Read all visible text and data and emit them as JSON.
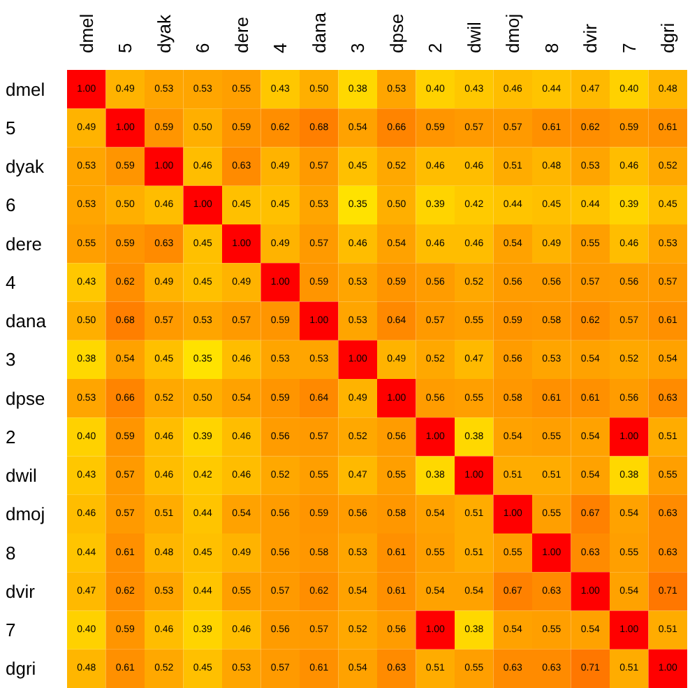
{
  "chart_data": {
    "type": "heatmap",
    "categories": [
      "dmel",
      "5",
      "dyak",
      "6",
      "dere",
      "4",
      "dana",
      "3",
      "dpse",
      "2",
      "dwil",
      "dmoj",
      "8",
      "dvir",
      "7",
      "dgri"
    ],
    "y_categories": [
      "dmel",
      "5",
      "dyak",
      "6",
      "dere",
      "4",
      "dana",
      "3",
      "dpse",
      "2",
      "dwil",
      "dmoj",
      "8",
      "dvir",
      "7",
      "dgri"
    ],
    "cells": [
      [
        1.0,
        0.49,
        0.53,
        0.53,
        0.55,
        0.43,
        0.5,
        0.38,
        0.53,
        0.4,
        0.43,
        0.46,
        0.44,
        0.47,
        0.4,
        0.48
      ],
      [
        0.49,
        1.0,
        0.59,
        0.5,
        0.59,
        0.62,
        0.68,
        0.54,
        0.66,
        0.59,
        0.57,
        0.57,
        0.61,
        0.62,
        0.59,
        0.61
      ],
      [
        0.53,
        0.59,
        1.0,
        0.46,
        0.63,
        0.49,
        0.57,
        0.45,
        0.52,
        0.46,
        0.46,
        0.51,
        0.48,
        0.53,
        0.46,
        0.52
      ],
      [
        0.53,
        0.5,
        0.46,
        1.0,
        0.45,
        0.45,
        0.53,
        0.35,
        0.5,
        0.39,
        0.42,
        0.44,
        0.45,
        0.44,
        0.39,
        0.45
      ],
      [
        0.55,
        0.59,
        0.63,
        0.45,
        1.0,
        0.49,
        0.57,
        0.46,
        0.54,
        0.46,
        0.46,
        0.54,
        0.49,
        0.55,
        0.46,
        0.53
      ],
      [
        0.43,
        0.62,
        0.49,
        0.45,
        0.49,
        1.0,
        0.59,
        0.53,
        0.59,
        0.56,
        0.52,
        0.56,
        0.56,
        0.57,
        0.56,
        0.57
      ],
      [
        0.5,
        0.68,
        0.57,
        0.53,
        0.57,
        0.59,
        1.0,
        0.53,
        0.64,
        0.57,
        0.55,
        0.59,
        0.58,
        0.62,
        0.57,
        0.61
      ],
      [
        0.38,
        0.54,
        0.45,
        0.35,
        0.46,
        0.53,
        0.53,
        1.0,
        0.49,
        0.52,
        0.47,
        0.56,
        0.53,
        0.54,
        0.52,
        0.54
      ],
      [
        0.53,
        0.66,
        0.52,
        0.5,
        0.54,
        0.59,
        0.64,
        0.49,
        1.0,
        0.56,
        0.55,
        0.58,
        0.61,
        0.61,
        0.56,
        0.63
      ],
      [
        0.4,
        0.59,
        0.46,
        0.39,
        0.46,
        0.56,
        0.57,
        0.52,
        0.56,
        1.0,
        0.38,
        0.54,
        0.55,
        0.54,
        1.0,
        0.51
      ],
      [
        0.43,
        0.57,
        0.46,
        0.42,
        0.46,
        0.52,
        0.55,
        0.47,
        0.55,
        0.38,
        1.0,
        0.51,
        0.51,
        0.54,
        0.38,
        0.55
      ],
      [
        0.46,
        0.57,
        0.51,
        0.44,
        0.54,
        0.56,
        0.59,
        0.56,
        0.58,
        0.54,
        0.51,
        1.0,
        0.55,
        0.67,
        0.54,
        0.63
      ],
      [
        0.44,
        0.61,
        0.48,
        0.45,
        0.49,
        0.56,
        0.58,
        0.53,
        0.61,
        0.55,
        0.51,
        0.55,
        1.0,
        0.63,
        0.55,
        0.63
      ],
      [
        0.47,
        0.62,
        0.53,
        0.44,
        0.55,
        0.57,
        0.62,
        0.54,
        0.61,
        0.54,
        0.54,
        0.67,
        0.63,
        1.0,
        0.54,
        0.71
      ],
      [
        0.4,
        0.59,
        0.46,
        0.39,
        0.46,
        0.56,
        0.57,
        0.52,
        0.56,
        1.0,
        0.38,
        0.54,
        0.55,
        0.54,
        1.0,
        0.51
      ],
      [
        0.48,
        0.61,
        0.52,
        0.45,
        0.53,
        0.57,
        0.61,
        0.54,
        0.63,
        0.51,
        0.55,
        0.63,
        0.63,
        0.71,
        0.51,
        1.0
      ]
    ],
    "cell_labels": [
      [
        "1.00",
        "0.49",
        "0.53",
        "0.53",
        "0.55",
        "0.43",
        "0.50",
        "0.38",
        "0.53",
        "0.40",
        "0.43",
        "0.46",
        "0.44",
        "0.47",
        "0.40",
        "0.48"
      ],
      [
        "0.49",
        "1.00",
        "0.59",
        "0.50",
        "0.59",
        "0.62",
        "0.68",
        "0.54",
        "0.66",
        "0.59",
        "0.57",
        "0.57",
        "0.61",
        "0.62",
        "0.59",
        "0.61"
      ],
      [
        "0.53",
        "0.59",
        "1.00",
        "0.46",
        "0.63",
        "0.49",
        "0.57",
        "0.45",
        "0.52",
        "0.46",
        "0.46",
        "0.51",
        "0.48",
        "0.53",
        "0.46",
        "0.52"
      ],
      [
        "0.53",
        "0.50",
        "0.46",
        "1.00",
        "0.45",
        "0.45",
        "0.53",
        "0.35",
        "0.50",
        "0.39",
        "0.42",
        "0.44",
        "0.45",
        "0.44",
        "0.39",
        "0.45"
      ],
      [
        "0.55",
        "0.59",
        "0.63",
        "0.45",
        "1.00",
        "0.49",
        "0.57",
        "0.46",
        "0.54",
        "0.46",
        "0.46",
        "0.54",
        "0.49",
        "0.55",
        "0.46",
        "0.53"
      ],
      [
        "0.43",
        "0.62",
        "0.49",
        "0.45",
        "0.49",
        "1.00",
        "0.59",
        "0.53",
        "0.59",
        "0.56",
        "0.52",
        "0.56",
        "0.56",
        "0.57",
        "0.56",
        "0.57"
      ],
      [
        "0.50",
        "0.68",
        "0.57",
        "0.53",
        "0.57",
        "0.59",
        "1.00",
        "0.53",
        "0.64",
        "0.57",
        "0.55",
        "0.59",
        "0.58",
        "0.62",
        "0.57",
        "0.61"
      ],
      [
        "0.38",
        "0.54",
        "0.45",
        "0.35",
        "0.46",
        "0.53",
        "0.53",
        "1.00",
        "0.49",
        "0.52",
        "0.47",
        "0.56",
        "0.53",
        "0.54",
        "0.52",
        "0.54"
      ],
      [
        "0.53",
        "0.66",
        "0.52",
        "0.50",
        "0.54",
        "0.59",
        "0.64",
        "0.49",
        "1.00",
        "0.56",
        "0.55",
        "0.58",
        "0.61",
        "0.61",
        "0.56",
        "0.63"
      ],
      [
        "0.40",
        "0.59",
        "0.46",
        "0.39",
        "0.46",
        "0.56",
        "0.57",
        "0.52",
        "0.56",
        "1.00",
        "0.38",
        "0.54",
        "0.55",
        "0.54",
        "1.00",
        "0.51"
      ],
      [
        "0.43",
        "0.57",
        "0.46",
        "0.42",
        "0.46",
        "0.52",
        "0.55",
        "0.47",
        "0.55",
        "0.38",
        "1.00",
        "0.51",
        "0.51",
        "0.54",
        "0.38",
        "0.55"
      ],
      [
        "0.46",
        "0.57",
        "0.51",
        "0.44",
        "0.54",
        "0.56",
        "0.59",
        "0.56",
        "0.58",
        "0.54",
        "0.51",
        "1.00",
        "0.55",
        "0.67",
        "0.54",
        "0.63"
      ],
      [
        "0.44",
        "0.61",
        "0.48",
        "0.45",
        "0.49",
        "0.56",
        "0.58",
        "0.53",
        "0.61",
        "0.55",
        "0.51",
        "0.55",
        "1.00",
        "0.63",
        "0.55",
        "0.63"
      ],
      [
        "0.47",
        "0.62",
        "0.53",
        "0.44",
        "0.55",
        "0.57",
        "0.62",
        "0.54",
        "0.61",
        "0.54",
        "0.54",
        "0.67",
        "0.63",
        "1.00",
        "0.54",
        "0.71"
      ],
      [
        "0.40",
        "0.59",
        "0.46",
        "0.39",
        "0.46",
        "0.56",
        "0.57",
        "0.52",
        "0.56",
        "1.00",
        "0.38",
        "0.54",
        "0.55",
        "0.54",
        "1.00",
        "0.51"
      ],
      [
        "0.48",
        "0.61",
        "0.52",
        "0.45",
        "0.53",
        "0.57",
        "0.61",
        "0.54",
        "0.63",
        "0.51",
        "0.55",
        "0.63",
        "0.63",
        "0.71",
        "0.51",
        "1.00"
      ]
    ]
  }
}
